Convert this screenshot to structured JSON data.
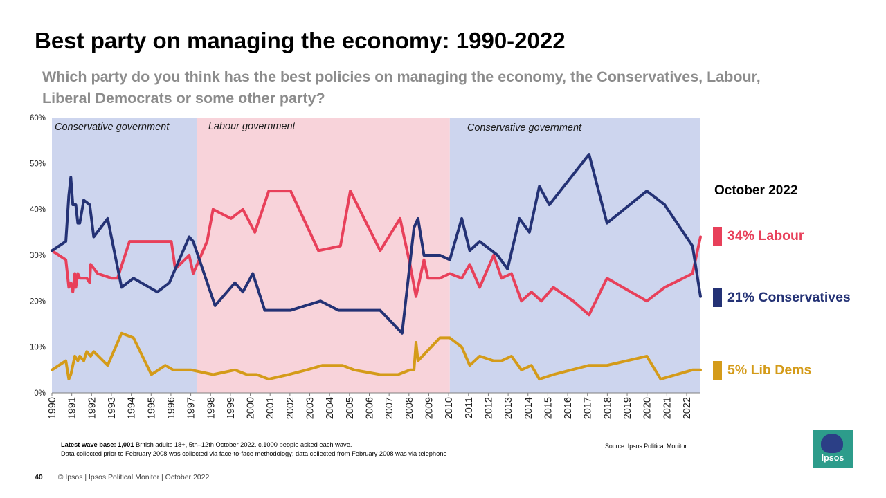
{
  "header": {
    "title": "Best party on managing the economy: 1990-2022",
    "subtitle": "Which party do you think has the best policies on managing the economy, the Conservatives, Labour, Liberal Democrats or some other party?"
  },
  "chart_data": {
    "type": "line",
    "xlim": [
      1990,
      2022.6
    ],
    "ylim": [
      0,
      60
    ],
    "yticks": [
      0,
      10,
      20,
      30,
      40,
      50,
      60
    ],
    "ytick_labels": [
      "0%",
      "10%",
      "20%",
      "30%",
      "40%",
      "50%",
      "60%"
    ],
    "xtick_labels": [
      "1990",
      "1991",
      "1992",
      "1993",
      "1994",
      "1995",
      "1996",
      "1997",
      "1998",
      "1999",
      "2000",
      "2001",
      "2002",
      "2003",
      "2004",
      "2005",
      "2006",
      "2007",
      "2008",
      "2009",
      "2010",
      "2011",
      "2012",
      "2013",
      "2014",
      "2015",
      "2016",
      "2017",
      "2018",
      "2019",
      "2020",
      "2021",
      "2022"
    ],
    "periods": [
      {
        "label": "Conservative government",
        "start": 1990,
        "end": 1997.3,
        "color": "#cdd5ee"
      },
      {
        "label": "Labour government",
        "start": 1997.3,
        "end": 2010.0,
        "color": "#f8d3da"
      },
      {
        "label": "Conservative government",
        "start": 2010.0,
        "end": 2022.6,
        "color": "#cdd5ee"
      }
    ],
    "series": [
      {
        "name": "Labour",
        "color": "#e8405a",
        "points": [
          [
            1990,
            31
          ],
          [
            1990.7,
            29
          ],
          [
            1990.85,
            23
          ],
          [
            1990.95,
            24
          ],
          [
            1991.05,
            22
          ],
          [
            1991.15,
            26
          ],
          [
            1991.2,
            23
          ],
          [
            1991.3,
            26
          ],
          [
            1991.4,
            25
          ],
          [
            1991.5,
            25
          ],
          [
            1991.75,
            25
          ],
          [
            1991.9,
            24
          ],
          [
            1991.95,
            28
          ],
          [
            1992.3,
            26
          ],
          [
            1993.0,
            25
          ],
          [
            1993.3,
            25
          ],
          [
            1993.9,
            33
          ],
          [
            1995.0,
            33
          ],
          [
            1996.0,
            33
          ],
          [
            1996.2,
            27
          ],
          [
            1996.9,
            30
          ],
          [
            1997.1,
            26
          ],
          [
            1997.8,
            33
          ],
          [
            1998.1,
            40
          ],
          [
            1999.0,
            38
          ],
          [
            1999.6,
            40
          ],
          [
            2000.2,
            35
          ],
          [
            2000.9,
            44
          ],
          [
            2002.0,
            44
          ],
          [
            2003.4,
            31
          ],
          [
            2004.5,
            32
          ],
          [
            2005.0,
            44
          ],
          [
            2006.5,
            31
          ],
          [
            2007.5,
            38
          ],
          [
            2008.0,
            28
          ],
          [
            2008.3,
            21
          ],
          [
            2008.7,
            29
          ],
          [
            2008.9,
            25
          ],
          [
            2009.5,
            25
          ],
          [
            2010.0,
            26
          ],
          [
            2010.6,
            25
          ],
          [
            2011.0,
            28
          ],
          [
            2011.5,
            23
          ],
          [
            2012.2,
            30
          ],
          [
            2012.6,
            25
          ],
          [
            2013.1,
            26
          ],
          [
            2013.6,
            20
          ],
          [
            2014.1,
            22
          ],
          [
            2014.6,
            20
          ],
          [
            2015.2,
            23
          ],
          [
            2016.2,
            20
          ],
          [
            2017.0,
            17
          ],
          [
            2017.9,
            25
          ],
          [
            2019.9,
            20
          ],
          [
            2020.8,
            23
          ],
          [
            2022.2,
            26
          ],
          [
            2022.6,
            34
          ]
        ]
      },
      {
        "name": "Conservatives",
        "color": "#243275",
        "points": [
          [
            1990,
            31
          ],
          [
            1990.7,
            33
          ],
          [
            1990.85,
            43
          ],
          [
            1990.95,
            47
          ],
          [
            1991.05,
            41
          ],
          [
            1991.2,
            41
          ],
          [
            1991.3,
            37
          ],
          [
            1991.4,
            37
          ],
          [
            1991.6,
            42
          ],
          [
            1991.9,
            41
          ],
          [
            1992.1,
            34
          ],
          [
            1992.8,
            38
          ],
          [
            1993.5,
            23
          ],
          [
            1994.1,
            25
          ],
          [
            1995.3,
            22
          ],
          [
            1995.9,
            24
          ],
          [
            1996.9,
            34
          ],
          [
            1997.1,
            33
          ],
          [
            1998.2,
            19
          ],
          [
            1999.2,
            24
          ],
          [
            1999.6,
            22
          ],
          [
            2000.1,
            26
          ],
          [
            2000.7,
            18
          ],
          [
            2002.0,
            18
          ],
          [
            2003.5,
            20
          ],
          [
            2004.4,
            18
          ],
          [
            2006.5,
            18
          ],
          [
            2007.6,
            13
          ],
          [
            2008.2,
            36
          ],
          [
            2008.4,
            38
          ],
          [
            2008.7,
            30
          ],
          [
            2009.5,
            30
          ],
          [
            2010.0,
            29
          ],
          [
            2010.6,
            38
          ],
          [
            2011.0,
            31
          ],
          [
            2011.5,
            33
          ],
          [
            2012.4,
            30
          ],
          [
            2012.9,
            27
          ],
          [
            2013.5,
            38
          ],
          [
            2014.0,
            35
          ],
          [
            2014.5,
            45
          ],
          [
            2015.0,
            41
          ],
          [
            2017.0,
            52
          ],
          [
            2017.9,
            37
          ],
          [
            2019.9,
            44
          ],
          [
            2020.8,
            41
          ],
          [
            2022.2,
            32
          ],
          [
            2022.6,
            21
          ]
        ]
      },
      {
        "name": "Lib Dems",
        "color": "#d49b19",
        "points": [
          [
            1990,
            5
          ],
          [
            1990.7,
            7
          ],
          [
            1990.85,
            3
          ],
          [
            1990.95,
            4
          ],
          [
            1991.15,
            8
          ],
          [
            1991.3,
            7
          ],
          [
            1991.4,
            8
          ],
          [
            1991.6,
            7
          ],
          [
            1991.75,
            9
          ],
          [
            1991.95,
            8
          ],
          [
            1992.1,
            9
          ],
          [
            1992.8,
            6
          ],
          [
            1993.5,
            13
          ],
          [
            1994.1,
            12
          ],
          [
            1995.0,
            4
          ],
          [
            1995.7,
            6
          ],
          [
            1996.1,
            5
          ],
          [
            1997.0,
            5
          ],
          [
            1998.1,
            4
          ],
          [
            1999.2,
            5
          ],
          [
            1999.8,
            4
          ],
          [
            2000.3,
            4
          ],
          [
            2000.9,
            3
          ],
          [
            2001.9,
            4
          ],
          [
            2002.8,
            5
          ],
          [
            2003.6,
            6
          ],
          [
            2004.6,
            6
          ],
          [
            2005.2,
            5
          ],
          [
            2006.5,
            4
          ],
          [
            2007.4,
            4
          ],
          [
            2008.0,
            5
          ],
          [
            2008.2,
            5
          ],
          [
            2008.3,
            11
          ],
          [
            2008.4,
            7
          ],
          [
            2009.5,
            12
          ],
          [
            2010.0,
            12
          ],
          [
            2010.6,
            10
          ],
          [
            2011.0,
            6
          ],
          [
            2011.5,
            8
          ],
          [
            2012.2,
            7
          ],
          [
            2012.6,
            7
          ],
          [
            2013.1,
            8
          ],
          [
            2013.6,
            5
          ],
          [
            2014.1,
            6
          ],
          [
            2014.5,
            3
          ],
          [
            2015.2,
            4
          ],
          [
            2017.0,
            6
          ],
          [
            2017.9,
            6
          ],
          [
            2019.9,
            8
          ],
          [
            2020.6,
            3
          ],
          [
            2022.2,
            5
          ],
          [
            2022.6,
            5
          ]
        ]
      }
    ]
  },
  "legend": {
    "heading": "October 2022",
    "items": [
      {
        "label": "34% Labour",
        "color": "#e8405a",
        "text_color": "#e8405a"
      },
      {
        "label": "21% Conservatives",
        "color": "#243275",
        "text_color": "#243275"
      },
      {
        "label": "5% Lib Dems",
        "color": "#d49b19",
        "text_color": "#d49b19"
      }
    ]
  },
  "footnote": {
    "base_label": "Latest wave base:",
    "base_count": "1,001",
    "base_rest": " British adults 18+, 5th–12th  October 2022. c.1000 people asked each wave.",
    "line2": "Data  collected prior to February 2008 was collected via face-to-face methodology; data collected from February 2008 was via telephone"
  },
  "source": "Source: Ipsos Political Monitor",
  "footer": {
    "page_number": "40",
    "text": "© Ipsos | Ipsos  Political Monitor | October 2022"
  },
  "logo": {
    "text": "Ipsos"
  }
}
